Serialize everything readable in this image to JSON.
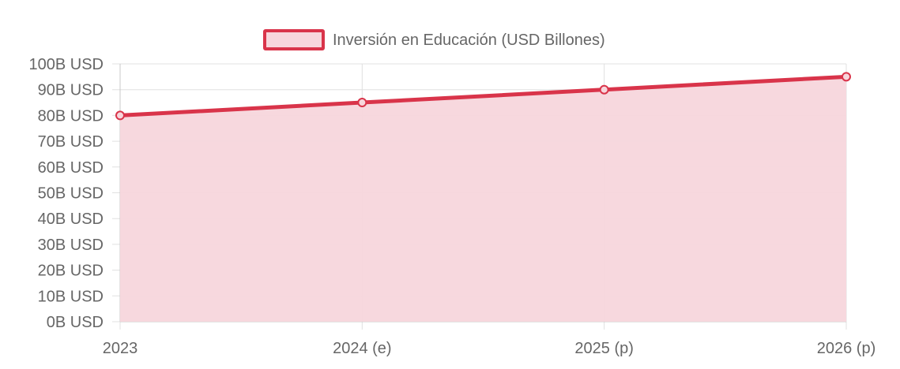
{
  "chart_data": {
    "type": "area",
    "categories": [
      "2023",
      "2024 (e)",
      "2025 (p)",
      "2026 (p)"
    ],
    "series": [
      {
        "name": "Inversión en Educación (USD Billones)",
        "values": [
          80,
          85,
          90,
          95
        ],
        "color": "#d9344a",
        "fill": "#f7d6dc"
      }
    ],
    "y_tick_labels": [
      "0B USD",
      "10B USD",
      "20B USD",
      "30B USD",
      "40B USD",
      "50B USD",
      "60B USD",
      "70B USD",
      "80B USD",
      "90B USD",
      "100B USD"
    ],
    "ylim": [
      0,
      100
    ],
    "y_step": 10,
    "grid": true,
    "legend_position": "top",
    "grid_color": "#e0e0e0",
    "axis_label_color": "#666666"
  }
}
